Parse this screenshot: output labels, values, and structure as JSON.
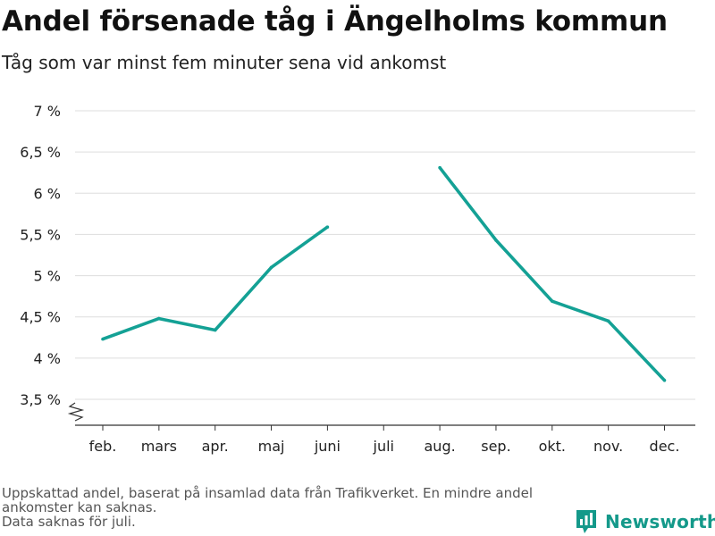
{
  "header": {
    "title": "Andel försenade tåg i Ängelholms kommun",
    "subtitle": "Tåg som var minst fem minuter sena vid ankomst"
  },
  "footer": {
    "note_line1": "Uppskattad andel, baserat på insamlad data från Trafikverket. En mindre andel ankomster kan saknas.",
    "note_line2": "Data saknas för juli.",
    "brand": "Newsworthy"
  },
  "colors": {
    "line": "#14a195",
    "brand": "#14998a"
  },
  "chart_data": {
    "type": "line",
    "title": "Andel försenade tåg i Ängelholms kommun",
    "subtitle": "Tåg som var minst fem minuter sena vid ankomst",
    "xlabel": "",
    "ylabel": "",
    "categories": [
      "feb.",
      "mars",
      "apr.",
      "maj",
      "juni",
      "juli",
      "aug.",
      "sep.",
      "okt.",
      "nov.",
      "dec."
    ],
    "series": [
      {
        "values": [
          4.23,
          4.48,
          4.34,
          5.1,
          5.59,
          null,
          6.31,
          5.43,
          4.69,
          4.45,
          3.73
        ]
      }
    ],
    "ylim": [
      3.5,
      7
    ],
    "yticks": [
      3.5,
      4,
      4.5,
      5,
      5.5,
      6,
      6.5,
      7
    ],
    "ytick_labels": [
      "3,5 %",
      "4 %",
      "4,5 %",
      "5 %",
      "5,5 %",
      "6 %",
      "6,5 %",
      "7 %"
    ],
    "y_axis_break": true,
    "grid": true,
    "legend": "none"
  }
}
